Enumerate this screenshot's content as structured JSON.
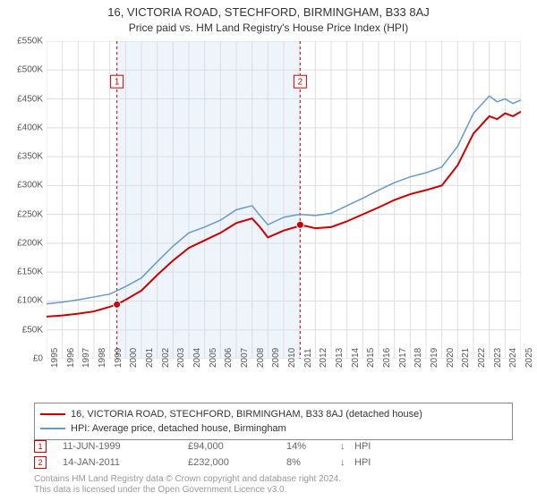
{
  "title": "16, VICTORIA ROAD, STECHFORD, BIRMINGHAM, B33 8AJ",
  "subtitle": "Price paid vs. HM Land Registry's House Price Index (HPI)",
  "chart": {
    "type": "line",
    "background_color": "#ffffff",
    "shaded_region": {
      "x_start": 1999.45,
      "x_end": 2011.04,
      "fill": "#eef4fb"
    },
    "x_axis": {
      "min": 1995,
      "max": 2025,
      "ticks": [
        1995,
        1996,
        1997,
        1998,
        1999,
        2000,
        2001,
        2002,
        2003,
        2004,
        2005,
        2006,
        2007,
        2008,
        2009,
        2010,
        2011,
        2012,
        2013,
        2014,
        2015,
        2016,
        2017,
        2018,
        2019,
        2020,
        2021,
        2022,
        2023,
        2024,
        2025
      ],
      "label_fontsize": 10,
      "label_color": "#555555",
      "rotation": -90
    },
    "y_axis": {
      "min": 0,
      "max": 550000,
      "ticks": [
        0,
        50000,
        100000,
        150000,
        200000,
        250000,
        300000,
        350000,
        400000,
        450000,
        500000,
        550000
      ],
      "tick_labels": [
        "£0",
        "£50K",
        "£100K",
        "£150K",
        "£200K",
        "£250K",
        "£300K",
        "£350K",
        "£400K",
        "£450K",
        "£500K",
        "£550K"
      ],
      "label_fontsize": 10,
      "label_color": "#555555"
    },
    "grid": {
      "color": "#dddddd",
      "width": 1
    },
    "series": [
      {
        "name": "price_paid",
        "label": "16, VICTORIA ROAD, STECHFORD, BIRMINGHAM, B33 8AJ (detached house)",
        "color": "#cc0000",
        "width": 2,
        "data_x": [
          1995,
          1996,
          1997,
          1998,
          1999,
          1999.45,
          2000,
          2001,
          2002,
          2003,
          2004,
          2005,
          2006,
          2007,
          2008,
          2008.5,
          2009,
          2010,
          2011,
          2011.04,
          2012,
          2013,
          2014,
          2015,
          2016,
          2017,
          2018,
          2019,
          2020,
          2021,
          2022,
          2023,
          2023.5,
          2024,
          2024.5,
          2025
        ],
        "data_y": [
          73000,
          75000,
          78000,
          82000,
          90000,
          94000,
          102000,
          118000,
          145000,
          170000,
          192000,
          205000,
          218000,
          235000,
          243000,
          228000,
          210000,
          222000,
          230000,
          232000,
          226000,
          228000,
          238000,
          250000,
          262000,
          275000,
          285000,
          292000,
          300000,
          335000,
          390000,
          420000,
          415000,
          425000,
          420000,
          428000
        ]
      },
      {
        "name": "hpi",
        "label": "HPI: Average price, detached house, Birmingham",
        "color": "#6699cc",
        "width": 1.5,
        "data_x": [
          1995,
          1996,
          1997,
          1998,
          1999,
          2000,
          2001,
          2002,
          2003,
          2004,
          2005,
          2006,
          2007,
          2008,
          2008.5,
          2009,
          2010,
          2011,
          2012,
          2013,
          2014,
          2015,
          2016,
          2017,
          2018,
          2019,
          2020,
          2021,
          2022,
          2023,
          2023.5,
          2024,
          2024.5,
          2025
        ],
        "data_y": [
          95000,
          98000,
          102000,
          107000,
          112000,
          125000,
          140000,
          168000,
          195000,
          218000,
          228000,
          240000,
          258000,
          265000,
          248000,
          232000,
          245000,
          250000,
          248000,
          252000,
          265000,
          278000,
          292000,
          305000,
          315000,
          322000,
          332000,
          368000,
          425000,
          455000,
          445000,
          450000,
          442000,
          448000
        ]
      }
    ],
    "event_lines": [
      {
        "x": 1999.45,
        "color": "#cc0000",
        "dash": "3,3",
        "marker_label": "1",
        "marker_y": 480000
      },
      {
        "x": 2011.04,
        "color": "#cc0000",
        "dash": "3,3",
        "marker_label": "2",
        "marker_y": 480000
      }
    ],
    "sale_markers": [
      {
        "x": 1999.45,
        "y": 94000,
        "color": "#cc0000",
        "radius": 4
      },
      {
        "x": 2011.04,
        "y": 232000,
        "color": "#cc0000",
        "radius": 4
      }
    ]
  },
  "legend": {
    "border_color": "#888888",
    "items": [
      {
        "color": "#cc0000",
        "width": 2,
        "label": "16, VICTORIA ROAD, STECHFORD, BIRMINGHAM, B33 8AJ (detached house)"
      },
      {
        "color": "#6699cc",
        "width": 1.5,
        "label": "HPI: Average price, detached house, Birmingham"
      }
    ]
  },
  "data_rows": [
    {
      "marker": "1",
      "marker_color": "#cc0000",
      "date": "11-JUN-1999",
      "price": "£94,000",
      "pct": "14%",
      "arrow": "↓",
      "suffix": "HPI"
    },
    {
      "marker": "2",
      "marker_color": "#cc0000",
      "date": "14-JAN-2011",
      "price": "£232,000",
      "pct": "8%",
      "arrow": "↓",
      "suffix": "HPI"
    }
  ],
  "footer": {
    "line1": "Contains HM Land Registry data © Crown copyright and database right 2024.",
    "line2": "This data is licensed under the Open Government Licence v3.0."
  }
}
